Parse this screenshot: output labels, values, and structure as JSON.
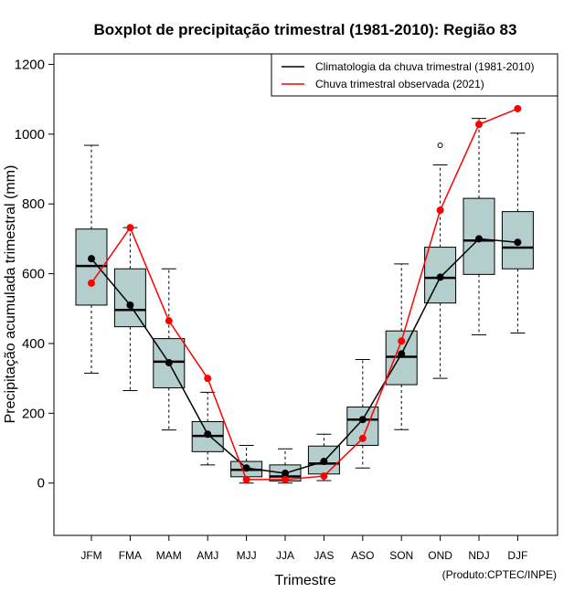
{
  "chart_data": {
    "type": "boxplot",
    "title": "Boxplot de precipitação trimestral (1981-2010): Região 83",
    "xlabel": "Trimestre",
    "ylabel": "Precipitação acumulada trimestral (mm)",
    "ylim": [
      -150,
      1230
    ],
    "yticks": [
      0,
      200,
      400,
      600,
      800,
      1000,
      1200
    ],
    "categories": [
      "JFM",
      "FMA",
      "MAM",
      "AMJ",
      "MJJ",
      "JJA",
      "JAS",
      "ASO",
      "SON",
      "OND",
      "NDJ",
      "DJF"
    ],
    "boxes": [
      {
        "min": 315,
        "q1": 510,
        "median": 622,
        "q3": 728,
        "max": 968,
        "outliers": []
      },
      {
        "min": 265,
        "q1": 448,
        "median": 496,
        "q3": 614,
        "max": 732,
        "outliers": []
      },
      {
        "min": 152,
        "q1": 273,
        "median": 348,
        "q3": 414,
        "max": 614,
        "outliers": []
      },
      {
        "min": 52,
        "q1": 90,
        "median": 135,
        "q3": 176,
        "max": 260,
        "outliers": []
      },
      {
        "min": 0,
        "q1": 18,
        "median": 38,
        "q3": 62,
        "max": 108,
        "outliers": []
      },
      {
        "min": 0,
        "q1": 6,
        "median": 19,
        "q3": 52,
        "max": 98,
        "outliers": []
      },
      {
        "min": 7,
        "q1": 26,
        "median": 56,
        "q3": 106,
        "max": 140,
        "outliers": []
      },
      {
        "min": 43,
        "q1": 108,
        "median": 182,
        "q3": 218,
        "max": 354,
        "outliers": []
      },
      {
        "min": 153,
        "q1": 282,
        "median": 362,
        "q3": 436,
        "max": 628,
        "outliers": []
      },
      {
        "min": 300,
        "q1": 516,
        "median": 588,
        "q3": 676,
        "max": 912,
        "outliers": [
          968
        ]
      },
      {
        "min": 425,
        "q1": 598,
        "median": 695,
        "q3": 816,
        "max": 1045,
        "outliers": []
      },
      {
        "min": 430,
        "q1": 614,
        "median": 675,
        "q3": 778,
        "max": 1003,
        "outliers": []
      }
    ],
    "series": [
      {
        "name": "Climatologia da chuva trimestral (1981-2010)",
        "color": "#000000",
        "values": [
          643,
          510,
          345,
          140,
          43,
          28,
          62,
          182,
          370,
          590,
          700,
          690
        ]
      },
      {
        "name": "Chuva trimestral observada (2021)",
        "color": "#ff0000",
        "values": [
          573,
          732,
          465,
          300,
          10,
          10,
          20,
          128,
          407,
          782,
          1028,
          1073
        ]
      }
    ],
    "legend_position": "top-right",
    "box_fill": "#b4cece",
    "credit": "(Produto:CPTEC/INPE)"
  }
}
